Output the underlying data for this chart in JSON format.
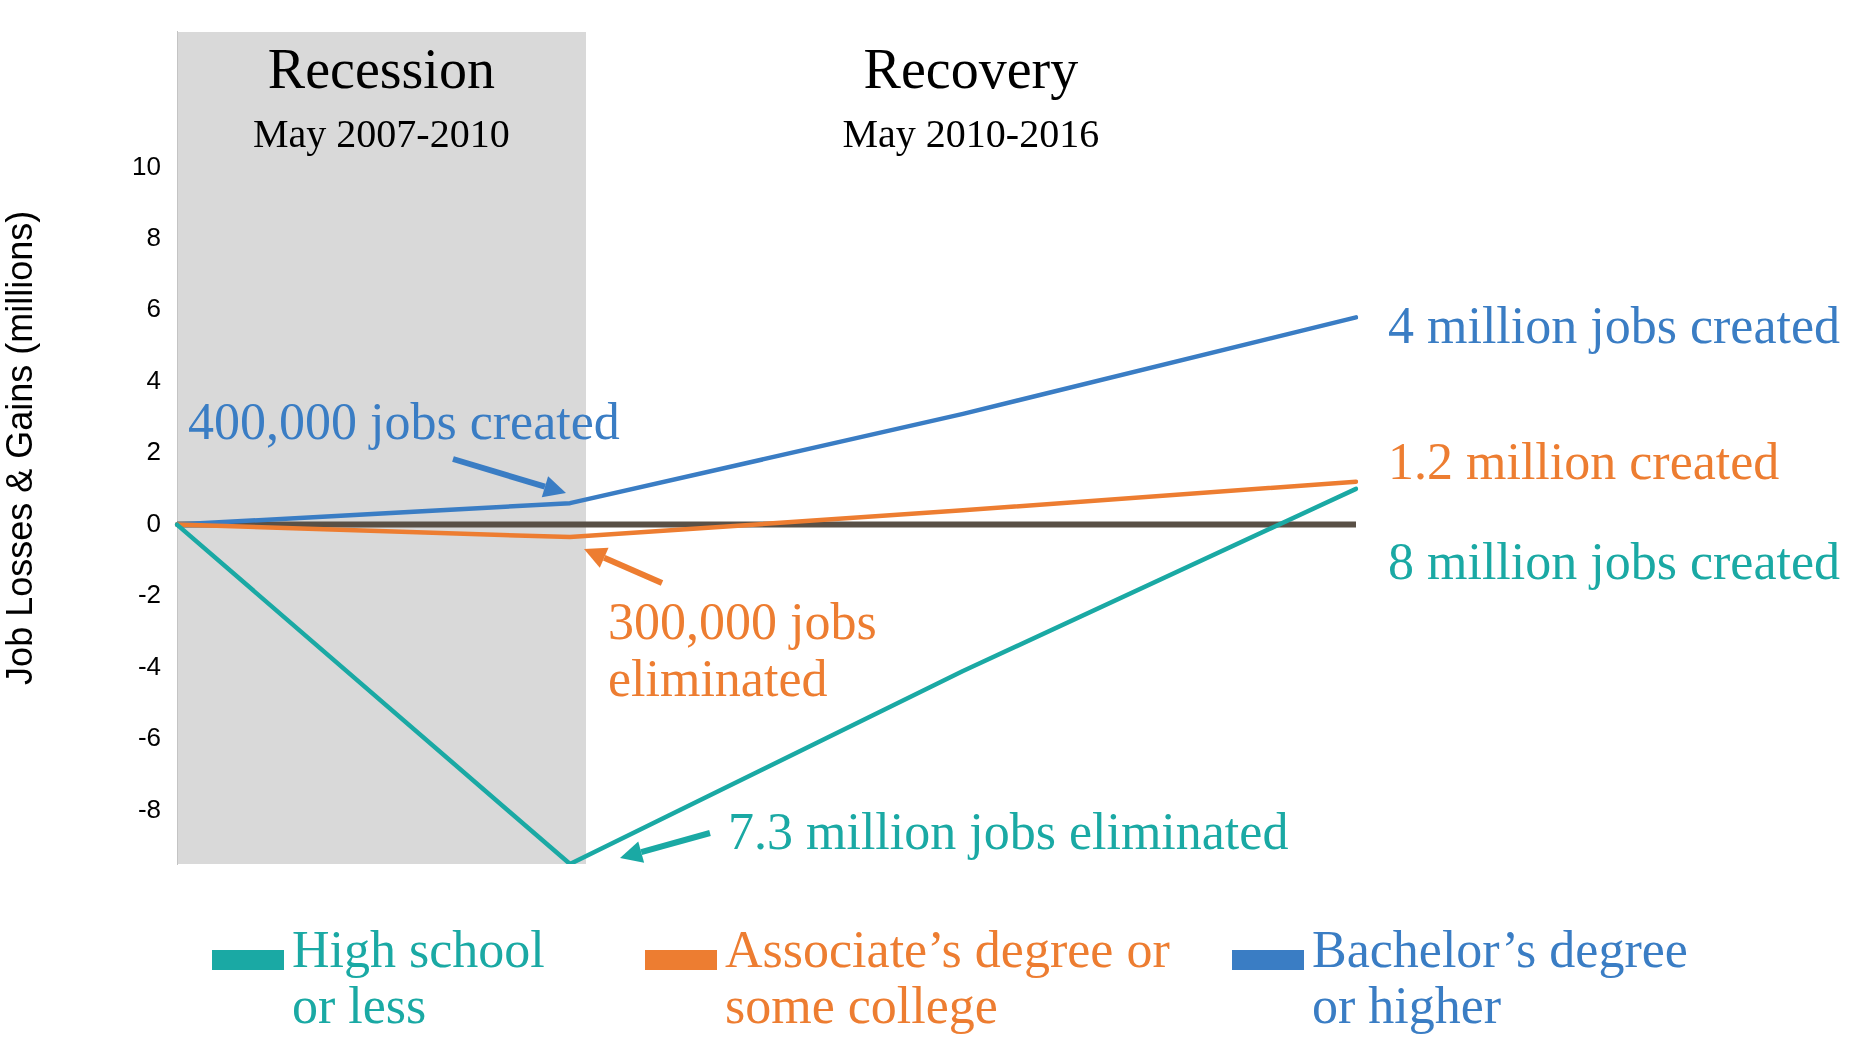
{
  "chart_data": {
    "type": "line",
    "ylabel": "Job Losses & Gains (millions)",
    "categories": [
      null,
      null,
      null,
      null
    ],
    "ylim": [
      -9.5,
      13.8
    ],
    "yticks": [
      -8,
      -6,
      -4,
      -2,
      0,
      2,
      4,
      6,
      8,
      10
    ],
    "tick_labels": "y",
    "grid": false,
    "marker": "none",
    "legend": "bottom",
    "series": [
      {
        "name": "High school or less",
        "color": "#1aa9a4",
        "values": [
          0,
          -9.5,
          -4.1,
          1.0
        ]
      },
      {
        "name": "Associate’s degree or some college",
        "color": "#ed7d31",
        "values": [
          0,
          -0.35,
          0.4,
          1.2
        ]
      },
      {
        "name": "Bachelor’s degree or higher",
        "color": "#3a7dc4",
        "values": [
          0,
          0.6,
          3.1,
          5.8
        ]
      }
    ],
    "ref_lines": [
      {
        "axis": "y",
        "value": 0,
        "color": "#595046"
      }
    ],
    "annotations": [
      "Recession",
      "May 2007-2010",
      "Recovery",
      "May 2010-2016",
      "400,000 jobs created",
      "300,000 jobs eliminated",
      "7.3 million jobs eliminated",
      "4 million jobs created",
      "1.2 million created",
      "8 million jobs created"
    ]
  }
}
